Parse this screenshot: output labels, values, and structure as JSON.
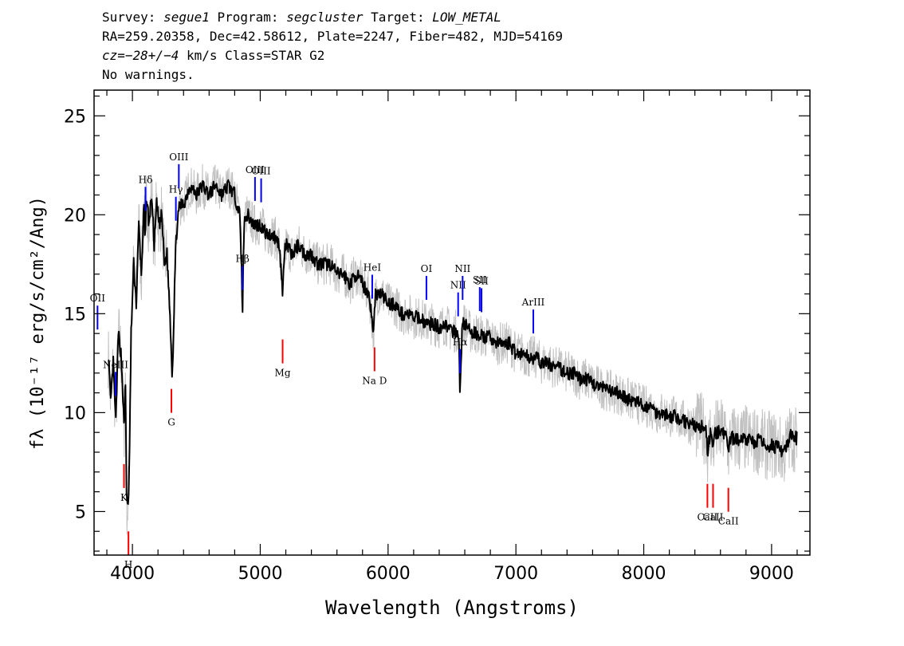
{
  "header": {
    "line1": {
      "survey_label": "Survey: ",
      "survey_value": "segue1",
      "program_label": " Program: ",
      "program_value": "segcluster",
      "target_label": " Target: ",
      "target_value": "LOW_METAL"
    },
    "line2": "RA=259.20358, Dec=42.58612, Plate=2247, Fiber=482, MJD=54169",
    "line3": {
      "cz_value": "cz=−28+/−4",
      "cz_unit": " km/s Class=STAR G2"
    },
    "line4": "No warnings."
  },
  "chart_data": {
    "type": "line",
    "xlabel": "Wavelength (Angstroms)",
    "ylabel": "fλ (10⁻¹⁷ erg/s/cm²/Ang)",
    "xlim": [
      3700,
      9300
    ],
    "ylim": [
      2.8,
      26.3
    ],
    "x_ticks": [
      4000,
      5000,
      6000,
      7000,
      8000,
      9000
    ],
    "x_tick_labels": [
      "4000",
      "5000",
      "6000",
      "7000",
      "8000",
      "9000"
    ],
    "y_ticks": [
      5,
      10,
      15,
      20,
      25
    ],
    "y_tick_labels": [
      "5",
      "10",
      "15",
      "20",
      "25"
    ],
    "grid": false,
    "series": [
      {
        "color": "#000000",
        "x": [
          3810,
          3830,
          3850,
          3870,
          3890,
          3910,
          3925,
          3935,
          3945,
          3955,
          3965,
          3975,
          3990,
          4010,
          4030,
          4050,
          4070,
          4090,
          4100,
          4110,
          4130,
          4150,
          4170,
          4190,
          4210,
          4230,
          4250,
          4270,
          4290,
          4300,
          4310,
          4320,
          4330,
          4340,
          4350,
          4370,
          4400,
          4450,
          4500,
          4550,
          4600,
          4650,
          4700,
          4750,
          4800,
          4840,
          4855,
          4861,
          4870,
          4880,
          4900,
          4950,
          5000,
          5050,
          5100,
          5150,
          5170,
          5175,
          5180,
          5190,
          5200,
          5250,
          5300,
          5350,
          5400,
          5450,
          5500,
          5550,
          5600,
          5650,
          5700,
          5750,
          5800,
          5850,
          5870,
          5885,
          5890,
          5900,
          5920,
          5950,
          6000,
          6050,
          6100,
          6150,
          6200,
          6250,
          6300,
          6350,
          6400,
          6450,
          6500,
          6540,
          6555,
          6563,
          6570,
          6580,
          6600,
          6650,
          6700,
          6750,
          6800,
          6850,
          6900,
          6950,
          7000,
          7050,
          7100,
          7150,
          7200,
          7250,
          7300,
          7350,
          7400,
          7450,
          7500,
          7550,
          7600,
          7650,
          7700,
          7750,
          7800,
          7850,
          7900,
          7950,
          8000,
          8050,
          8100,
          8150,
          8200,
          8250,
          8300,
          8350,
          8400,
          8450,
          8490,
          8500,
          8520,
          8542,
          8560,
          8600,
          8650,
          8662,
          8680,
          8700,
          8750,
          8800,
          8850,
          8900,
          8950,
          9000,
          9050,
          9100,
          9150,
          9200
        ],
        "values": [
          13.0,
          10.5,
          12.5,
          9.5,
          14.0,
          13.0,
          11.0,
          9.0,
          12.0,
          5.5,
          5.0,
          7.0,
          14.0,
          17.5,
          15.5,
          19.5,
          17.0,
          20.5,
          18.5,
          21.0,
          19.5,
          21.0,
          18.5,
          20.5,
          19.5,
          20.0,
          17.5,
          18.0,
          15.5,
          14.0,
          12.0,
          13.5,
          16.5,
          18.5,
          19.5,
          20.5,
          20.5,
          21.5,
          21.0,
          21.5,
          21.0,
          21.5,
          21.0,
          21.5,
          21.0,
          20.0,
          17.0,
          15.0,
          18.5,
          20.0,
          20.0,
          19.5,
          19.5,
          19.0,
          19.0,
          18.5,
          16.5,
          15.5,
          17.0,
          18.0,
          18.5,
          18.0,
          18.5,
          18.0,
          18.0,
          17.5,
          17.5,
          17.5,
          17.0,
          17.0,
          16.5,
          17.0,
          16.5,
          16.0,
          15.0,
          13.9,
          14.5,
          16.0,
          16.0,
          16.0,
          15.5,
          15.5,
          15.0,
          15.0,
          14.8,
          14.8,
          14.5,
          14.5,
          14.3,
          14.5,
          14.0,
          14.2,
          13.2,
          10.8,
          12.5,
          14.5,
          14.5,
          14.0,
          14.0,
          13.8,
          13.8,
          13.5,
          13.5,
          13.5,
          13.0,
          13.0,
          12.8,
          12.8,
          12.5,
          12.5,
          12.3,
          12.2,
          12.0,
          12.0,
          11.7,
          11.7,
          11.5,
          11.3,
          11.2,
          11.0,
          11.0,
          10.8,
          10.6,
          10.5,
          10.3,
          10.3,
          10.0,
          10.0,
          9.8,
          9.8,
          9.6,
          9.5,
          9.3,
          9.3,
          9.0,
          8.0,
          9.0,
          8.2,
          9.0,
          9.0,
          8.8,
          8.0,
          8.8,
          8.7,
          8.6,
          8.7,
          8.5,
          8.6,
          8.3,
          8.4,
          8.2,
          8.0,
          8.8,
          8.7
        ]
      }
    ],
    "lines_emission": [
      {
        "label": "OII",
        "x": 3727
      },
      {
        "label": "NeIII",
        "x": 3869
      },
      {
        "label": "Hδ",
        "x": 4102
      },
      {
        "label": "Hγ",
        "x": 4340
      },
      {
        "label": "OIII",
        "x": 4363
      },
      {
        "label": "Hβ",
        "x": 4861
      },
      {
        "label": "OIII",
        "x": 4959
      },
      {
        "label": "OIII",
        "x": 5007
      },
      {
        "label": "HeI",
        "x": 5876
      },
      {
        "label": "OI",
        "x": 6300
      },
      {
        "label": "NII",
        "x": 6548
      },
      {
        "label": "Hα",
        "x": 6563
      },
      {
        "label": "NII",
        "x": 6583
      },
      {
        "label": "SII",
        "x": 6717
      },
      {
        "label": "SII",
        "x": 6731
      },
      {
        "label": "ArIII",
        "x": 7136
      }
    ],
    "lines_absorption": [
      {
        "label": "K",
        "x": 3934
      },
      {
        "label": "H",
        "x": 3969
      },
      {
        "label": "G",
        "x": 4305
      },
      {
        "label": "Mg",
        "x": 5175
      },
      {
        "label": "Na D",
        "x": 5894
      },
      {
        "label": "CaII",
        "x": 8498
      },
      {
        "label": "CaII",
        "x": 8542
      },
      {
        "label": "CaII",
        "x": 8662
      }
    ],
    "colors": {
      "spectrum": "#000000",
      "error_band": "#c0c0c0",
      "emission": "#0000ff",
      "absorption": "#ff0000"
    }
  }
}
